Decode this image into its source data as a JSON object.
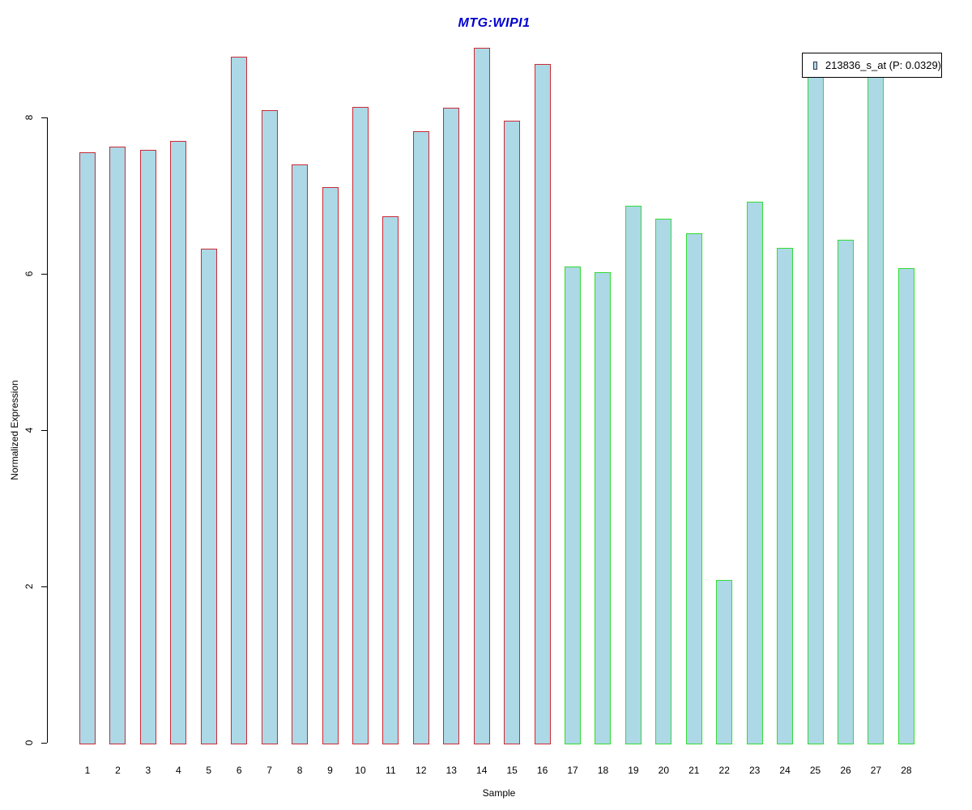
{
  "title": {
    "text": "MTG:WIPI1",
    "color": "#0000CD"
  },
  "chart_data": {
    "type": "bar",
    "title": "MTG:WIPI1",
    "xlabel": "Sample",
    "ylabel": "Normalized Expression",
    "ylim": [
      0,
      9
    ],
    "y_ticks": [
      0,
      2,
      4,
      6,
      8
    ],
    "grid": false,
    "bar_fill": "#ADD8E6",
    "categories": [
      "1",
      "2",
      "3",
      "4",
      "5",
      "6",
      "7",
      "8",
      "9",
      "10",
      "11",
      "12",
      "13",
      "14",
      "15",
      "16",
      "17",
      "18",
      "19",
      "20",
      "21",
      "22",
      "23",
      "24",
      "25",
      "26",
      "27",
      "28"
    ],
    "values": [
      7.55,
      7.63,
      7.59,
      7.7,
      6.32,
      8.78,
      8.09,
      7.4,
      7.11,
      8.13,
      6.74,
      7.82,
      8.12,
      8.89,
      7.96,
      8.68,
      6.09,
      6.02,
      6.87,
      6.7,
      6.52,
      2.08,
      6.92,
      6.33,
      8.72,
      6.44,
      8.78,
      6.07
    ],
    "groups": [
      {
        "name": "samples-1-16",
        "start": 1,
        "end": 16,
        "border_color": "#CC2A36"
      },
      {
        "name": "samples-17-28",
        "start": 17,
        "end": 28,
        "border_color": "#33DC33"
      }
    ],
    "legend": {
      "position": "top-right",
      "entries": [
        {
          "label": "213836_s_at (P: 0.0329)",
          "swatch_fill": "#ADD8E6",
          "swatch_border": "#333344"
        }
      ]
    }
  }
}
